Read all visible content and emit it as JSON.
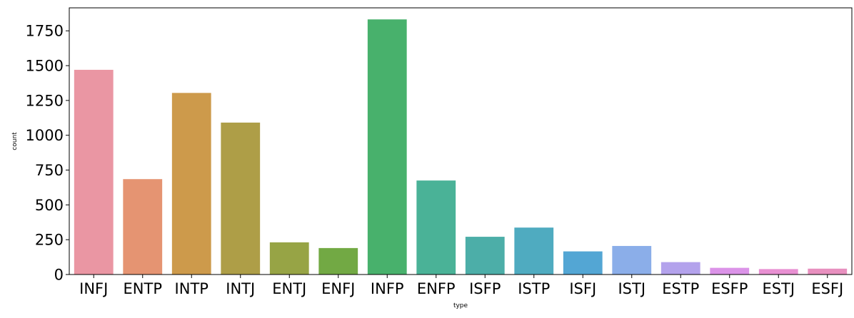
{
  "chart_data": {
    "type": "bar",
    "categories": [
      "INFJ",
      "ENTP",
      "INTP",
      "INTJ",
      "ENTJ",
      "ENFJ",
      "INFP",
      "ENFP",
      "ISFP",
      "ISTP",
      "ISFJ",
      "ISTJ",
      "ESTP",
      "ESFP",
      "ESTJ",
      "ESFJ"
    ],
    "values": [
      1470,
      685,
      1304,
      1091,
      231,
      190,
      1832,
      675,
      271,
      337,
      166,
      205,
      89,
      48,
      39,
      42
    ],
    "colors": [
      "#ea96a3",
      "#e59472",
      "#cd9a4b",
      "#ae9e47",
      "#97a445",
      "#72a944",
      "#48b16c",
      "#4ab297",
      "#4caea8",
      "#4fabc0",
      "#53a6d4",
      "#8baee9",
      "#b3a2ec",
      "#db93e8",
      "#e890d2",
      "#e890bf"
    ],
    "xlabel": "type",
    "ylabel": "count",
    "ylim": [
      0,
      1915
    ],
    "yticks": [
      0,
      250,
      500,
      750,
      1000,
      1250,
      1500,
      1750
    ],
    "grid": false,
    "legend": "none"
  }
}
